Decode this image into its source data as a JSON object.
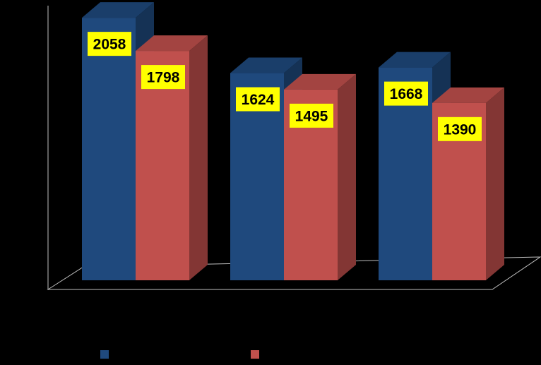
{
  "chart_data": {
    "type": "bar",
    "three_d": true,
    "categories": [
      "",
      "",
      ""
    ],
    "series": [
      {
        "values": [
          2058,
          1624,
          1668
        ],
        "color": "#1F497D"
      },
      {
        "values": [
          1798,
          1495,
          1390
        ],
        "color": "#C0504D"
      }
    ],
    "ylim": [
      0,
      2200
    ],
    "data_labels": true,
    "data_label_background": "#FFFF00",
    "legend_position": "bottom",
    "grid": false,
    "background": "#000000",
    "axis_color": "#BFBFBF"
  }
}
